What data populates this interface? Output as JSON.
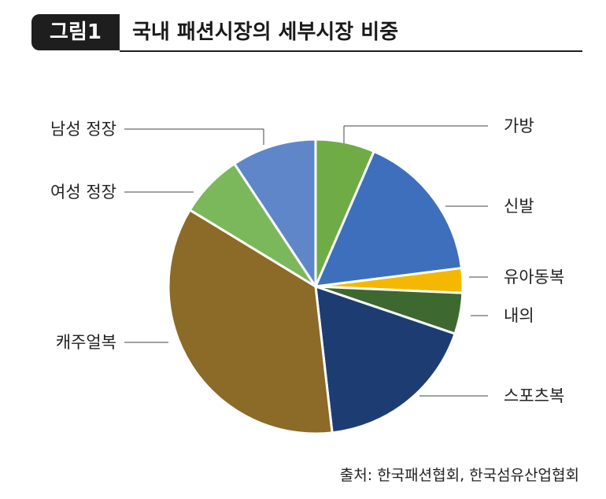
{
  "header": {
    "badge": "그림1",
    "title": "국내 패션시장의 세부시장 비중"
  },
  "source": "출처: 한국패션협회, 한국섬유산업협회",
  "chart_data": {
    "type": "pie",
    "title": "국내 패션시장의 세부시장 비중",
    "start": "12 o'clock, clockwise",
    "slices": [
      {
        "label": "가방",
        "value": 6.5,
        "color": "#6fac46"
      },
      {
        "label": "신발",
        "value": 16.5,
        "color": "#3d6fbd"
      },
      {
        "label": "유아동복",
        "value": 2.7,
        "color": "#f4b800"
      },
      {
        "label": "내의",
        "value": 4.5,
        "color": "#3d6830"
      },
      {
        "label": "스포츠복",
        "value": 18.0,
        "color": "#1d3d72"
      },
      {
        "label": "캐주얼복",
        "value": 35.5,
        "color": "#8c6a28"
      },
      {
        "label": "여성 정장",
        "value": 7.0,
        "color": "#7bb85b"
      },
      {
        "label": "남성 정장",
        "value": 9.3,
        "color": "#5f86c8"
      }
    ]
  }
}
